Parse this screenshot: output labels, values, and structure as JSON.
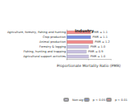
{
  "chart_data": {
    "type": "bar",
    "title": "Industry",
    "orientation": "horizontal",
    "stacked": true,
    "categories": [
      "Agriculture, forestry, fishing and hunting",
      "Crop production",
      "Animal production",
      "Forestry & logging",
      "Fishing, hunting and trapping",
      "Agricultural support activities"
    ],
    "series": [
      {
        "name": "Non-sig",
        "color": "#c8c0e0",
        "values": [
          null,
          null,
          null,
          1.0,
          0.9,
          1.0
        ],
        "value_labels": [
          null,
          null,
          null,
          "PMR = 1.0",
          "PMR = 0.9",
          "PMR = 1.0"
        ]
      },
      {
        "name": "p < 0.05",
        "color": "#7b8ee0",
        "values": [
          null,
          1.1,
          null,
          null,
          null,
          null
        ],
        "value_labels": [
          null,
          "PMR = 1.1",
          null,
          null,
          null,
          null
        ]
      },
      {
        "name": "p < 0.01",
        "color": "#f08c8c",
        "values": [
          1.1,
          null,
          1.2,
          null,
          null,
          null
        ],
        "value_labels": [
          "PMR = 1.1",
          null,
          "PMR = 1.2",
          null,
          null,
          null
        ]
      }
    ],
    "xlabel": "Proportionate Mortality Ratio (PMR)",
    "xlim": [
      0,
      2
    ],
    "xticks": [
      0,
      1,
      2
    ],
    "tick_labels": "y",
    "data_labels": true,
    "grid": false,
    "legend": "bottom"
  }
}
